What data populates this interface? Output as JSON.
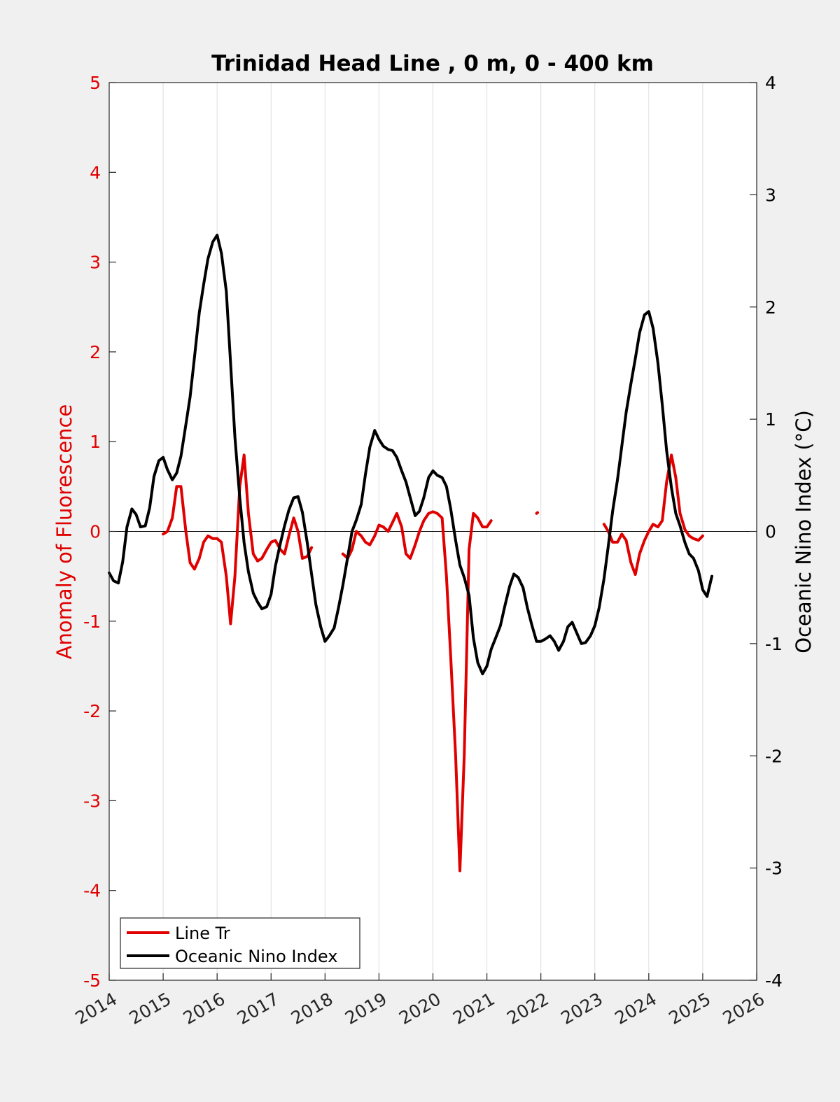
{
  "chart_data": {
    "type": "line",
    "title": "Trinidad Head Line , 0 m, 0 - 400 km",
    "ylabel_left": "Anomaly of Fluorescence",
    "ylabel_right": "Oceanic Nino Index (°C)",
    "xlim": [
      2014,
      2026
    ],
    "ylim_left": [
      -5,
      5
    ],
    "ylim_right": [
      -4,
      4
    ],
    "x_ticks": [
      "2014",
      "2015",
      "2016",
      "2017",
      "2018",
      "2019",
      "2020",
      "2021",
      "2022",
      "2023",
      "2024",
      "2025",
      "2026"
    ],
    "y_left_ticks": [
      "5",
      "4",
      "3",
      "2",
      "1",
      "0",
      "-1",
      "-2",
      "-3",
      "-4",
      "-5"
    ],
    "y_right_ticks": [
      "4",
      "3",
      "2",
      "1",
      "0",
      "-1",
      "-2",
      "-3",
      "-4"
    ],
    "grid": "vertical",
    "legend_position": "bottom-left",
    "colors": {
      "left_axis": "#e00000",
      "line_tr": "#e00000",
      "oni": "#000000",
      "background": "#f0f0f0",
      "plot_area": "#ffffff",
      "grid": "#dcdcdc"
    },
    "series": [
      {
        "name": "Line Tr",
        "axis": "left",
        "segments": [
          [
            [
              2015.0,
              -0.03
            ],
            [
              2015.08,
              0.0
            ],
            [
              2015.17,
              0.15
            ],
            [
              2015.25,
              0.5
            ],
            [
              2015.33,
              0.5
            ],
            [
              2015.42,
              0.0
            ],
            [
              2015.5,
              -0.35
            ],
            [
              2015.58,
              -0.42
            ],
            [
              2015.67,
              -0.3
            ],
            [
              2015.75,
              -0.12
            ],
            [
              2015.83,
              -0.05
            ],
            [
              2015.92,
              -0.08
            ],
            [
              2016.0,
              -0.08
            ],
            [
              2016.08,
              -0.12
            ],
            [
              2016.17,
              -0.5
            ],
            [
              2016.25,
              -1.03
            ],
            [
              2016.33,
              -0.5
            ],
            [
              2016.42,
              0.5
            ],
            [
              2016.5,
              0.85
            ],
            [
              2016.58,
              0.2
            ],
            [
              2016.67,
              -0.25
            ],
            [
              2016.75,
              -0.33
            ],
            [
              2016.83,
              -0.3
            ],
            [
              2016.92,
              -0.2
            ],
            [
              2017.0,
              -0.12
            ],
            [
              2017.08,
              -0.1
            ],
            [
              2017.17,
              -0.2
            ],
            [
              2017.25,
              -0.25
            ],
            [
              2017.33,
              -0.05
            ],
            [
              2017.42,
              0.15
            ],
            [
              2017.5,
              0.0
            ],
            [
              2017.58,
              -0.3
            ],
            [
              2017.67,
              -0.28
            ],
            [
              2017.75,
              -0.18
            ]
          ],
          [
            [
              2018.33,
              -0.25
            ],
            [
              2018.42,
              -0.3
            ],
            [
              2018.5,
              -0.2
            ],
            [
              2018.58,
              0.0
            ],
            [
              2018.67,
              -0.05
            ],
            [
              2018.75,
              -0.12
            ],
            [
              2018.83,
              -0.15
            ],
            [
              2018.92,
              -0.05
            ],
            [
              2019.0,
              0.07
            ],
            [
              2019.08,
              0.05
            ],
            [
              2019.17,
              0.0
            ],
            [
              2019.25,
              0.1
            ],
            [
              2019.33,
              0.2
            ],
            [
              2019.42,
              0.05
            ],
            [
              2019.5,
              -0.25
            ],
            [
              2019.58,
              -0.3
            ],
            [
              2019.67,
              -0.15
            ],
            [
              2019.75,
              0.0
            ],
            [
              2019.83,
              0.12
            ],
            [
              2019.92,
              0.2
            ],
            [
              2020.0,
              0.22
            ],
            [
              2020.08,
              0.2
            ],
            [
              2020.17,
              0.15
            ],
            [
              2020.25,
              -0.5
            ],
            [
              2020.33,
              -1.4
            ],
            [
              2020.42,
              -2.5
            ],
            [
              2020.5,
              -3.78
            ],
            [
              2020.58,
              -2.5
            ],
            [
              2020.67,
              -0.2
            ],
            [
              2020.75,
              0.2
            ],
            [
              2020.83,
              0.15
            ],
            [
              2020.92,
              0.05
            ],
            [
              2021.0,
              0.05
            ],
            [
              2021.08,
              0.12
            ]
          ],
          [
            [
              2021.92,
              0.2
            ],
            [
              2021.94,
              0.21
            ]
          ],
          [
            [
              2023.17,
              0.08
            ],
            [
              2023.25,
              0.0
            ],
            [
              2023.33,
              -0.12
            ],
            [
              2023.42,
              -0.12
            ],
            [
              2023.5,
              -0.03
            ],
            [
              2023.58,
              -0.1
            ],
            [
              2023.67,
              -0.35
            ],
            [
              2023.75,
              -0.48
            ],
            [
              2023.83,
              -0.25
            ],
            [
              2023.92,
              -0.1
            ],
            [
              2024.0,
              0.0
            ],
            [
              2024.08,
              0.08
            ],
            [
              2024.17,
              0.05
            ],
            [
              2024.25,
              0.12
            ],
            [
              2024.33,
              0.55
            ],
            [
              2024.42,
              0.85
            ],
            [
              2024.5,
              0.6
            ],
            [
              2024.58,
              0.2
            ],
            [
              2024.67,
              0.02
            ],
            [
              2024.75,
              -0.05
            ],
            [
              2024.83,
              -0.08
            ],
            [
              2024.92,
              -0.1
            ],
            [
              2025.0,
              -0.05
            ]
          ]
        ]
      },
      {
        "name": "Oceanic Nino Index",
        "axis": "right",
        "segments": [
          [
            [
              2014.0,
              -0.37
            ],
            [
              2014.08,
              -0.44
            ],
            [
              2014.17,
              -0.46
            ],
            [
              2014.25,
              -0.27
            ],
            [
              2014.33,
              0.04
            ],
            [
              2014.42,
              0.2
            ],
            [
              2014.5,
              0.15
            ],
            [
              2014.58,
              0.04
            ],
            [
              2014.67,
              0.05
            ],
            [
              2014.75,
              0.21
            ],
            [
              2014.83,
              0.49
            ],
            [
              2014.92,
              0.63
            ],
            [
              2015.0,
              0.66
            ],
            [
              2015.08,
              0.55
            ],
            [
              2015.17,
              0.46
            ],
            [
              2015.25,
              0.52
            ],
            [
              2015.33,
              0.67
            ],
            [
              2015.42,
              0.95
            ],
            [
              2015.5,
              1.2
            ],
            [
              2015.58,
              1.55
            ],
            [
              2015.67,
              1.95
            ],
            [
              2015.75,
              2.2
            ],
            [
              2015.83,
              2.43
            ],
            [
              2015.92,
              2.58
            ],
            [
              2016.0,
              2.64
            ],
            [
              2016.08,
              2.48
            ],
            [
              2016.17,
              2.14
            ],
            [
              2016.25,
              1.5
            ],
            [
              2016.33,
              0.84
            ],
            [
              2016.42,
              0.3
            ],
            [
              2016.5,
              -0.1
            ],
            [
              2016.58,
              -0.36
            ],
            [
              2016.67,
              -0.55
            ],
            [
              2016.75,
              -0.63
            ],
            [
              2016.83,
              -0.69
            ],
            [
              2016.92,
              -0.67
            ],
            [
              2017.0,
              -0.56
            ],
            [
              2017.08,
              -0.31
            ],
            [
              2017.17,
              -0.11
            ],
            [
              2017.25,
              0.05
            ],
            [
              2017.33,
              0.19
            ],
            [
              2017.42,
              0.3
            ],
            [
              2017.5,
              0.31
            ],
            [
              2017.58,
              0.17
            ],
            [
              2017.67,
              -0.1
            ],
            [
              2017.75,
              -0.38
            ],
            [
              2017.83,
              -0.65
            ],
            [
              2017.92,
              -0.85
            ],
            [
              2018.0,
              -0.98
            ],
            [
              2018.08,
              -0.93
            ],
            [
              2018.17,
              -0.86
            ],
            [
              2018.25,
              -0.68
            ],
            [
              2018.33,
              -0.48
            ],
            [
              2018.42,
              -0.23
            ],
            [
              2018.5,
              0.0
            ],
            [
              2018.58,
              0.1
            ],
            [
              2018.67,
              0.24
            ],
            [
              2018.75,
              0.51
            ],
            [
              2018.83,
              0.75
            ],
            [
              2018.92,
              0.9
            ],
            [
              2019.0,
              0.82
            ],
            [
              2019.08,
              0.76
            ],
            [
              2019.17,
              0.73
            ],
            [
              2019.25,
              0.72
            ],
            [
              2019.33,
              0.66
            ],
            [
              2019.42,
              0.54
            ],
            [
              2019.5,
              0.44
            ],
            [
              2019.58,
              0.3
            ],
            [
              2019.67,
              0.14
            ],
            [
              2019.75,
              0.18
            ],
            [
              2019.83,
              0.3
            ],
            [
              2019.92,
              0.48
            ],
            [
              2020.0,
              0.54
            ],
            [
              2020.08,
              0.5
            ],
            [
              2020.17,
              0.48
            ],
            [
              2020.25,
              0.4
            ],
            [
              2020.33,
              0.2
            ],
            [
              2020.42,
              -0.08
            ],
            [
              2020.5,
              -0.3
            ],
            [
              2020.58,
              -0.41
            ],
            [
              2020.67,
              -0.57
            ],
            [
              2020.75,
              -0.95
            ],
            [
              2020.83,
              -1.17
            ],
            [
              2020.92,
              -1.27
            ],
            [
              2021.0,
              -1.2
            ],
            [
              2021.08,
              -1.05
            ],
            [
              2021.17,
              -0.94
            ],
            [
              2021.25,
              -0.84
            ],
            [
              2021.33,
              -0.67
            ],
            [
              2021.42,
              -0.49
            ],
            [
              2021.5,
              -0.38
            ],
            [
              2021.58,
              -0.41
            ],
            [
              2021.67,
              -0.5
            ],
            [
              2021.75,
              -0.68
            ],
            [
              2021.83,
              -0.83
            ],
            [
              2021.92,
              -0.98
            ],
            [
              2022.0,
              -0.98
            ],
            [
              2022.08,
              -0.96
            ],
            [
              2022.17,
              -0.93
            ],
            [
              2022.25,
              -0.98
            ],
            [
              2022.33,
              -1.06
            ],
            [
              2022.42,
              -0.98
            ],
            [
              2022.5,
              -0.85
            ],
            [
              2022.58,
              -0.81
            ],
            [
              2022.67,
              -0.91
            ],
            [
              2022.75,
              -1.0
            ],
            [
              2022.83,
              -0.99
            ],
            [
              2022.92,
              -0.93
            ],
            [
              2023.0,
              -0.84
            ],
            [
              2023.08,
              -0.68
            ],
            [
              2023.17,
              -0.42
            ],
            [
              2023.25,
              -0.13
            ],
            [
              2023.33,
              0.18
            ],
            [
              2023.42,
              0.46
            ],
            [
              2023.5,
              0.76
            ],
            [
              2023.58,
              1.06
            ],
            [
              2023.67,
              1.32
            ],
            [
              2023.75,
              1.54
            ],
            [
              2023.83,
              1.77
            ],
            [
              2023.92,
              1.93
            ],
            [
              2024.0,
              1.96
            ],
            [
              2024.08,
              1.81
            ],
            [
              2024.17,
              1.5
            ],
            [
              2024.25,
              1.13
            ],
            [
              2024.33,
              0.72
            ],
            [
              2024.42,
              0.39
            ],
            [
              2024.5,
              0.16
            ],
            [
              2024.58,
              0.05
            ],
            [
              2024.67,
              -0.1
            ],
            [
              2024.75,
              -0.2
            ],
            [
              2024.83,
              -0.24
            ],
            [
              2024.92,
              -0.35
            ],
            [
              2025.0,
              -0.52
            ],
            [
              2025.08,
              -0.58
            ],
            [
              2025.17,
              -0.4
            ]
          ]
        ]
      }
    ]
  }
}
